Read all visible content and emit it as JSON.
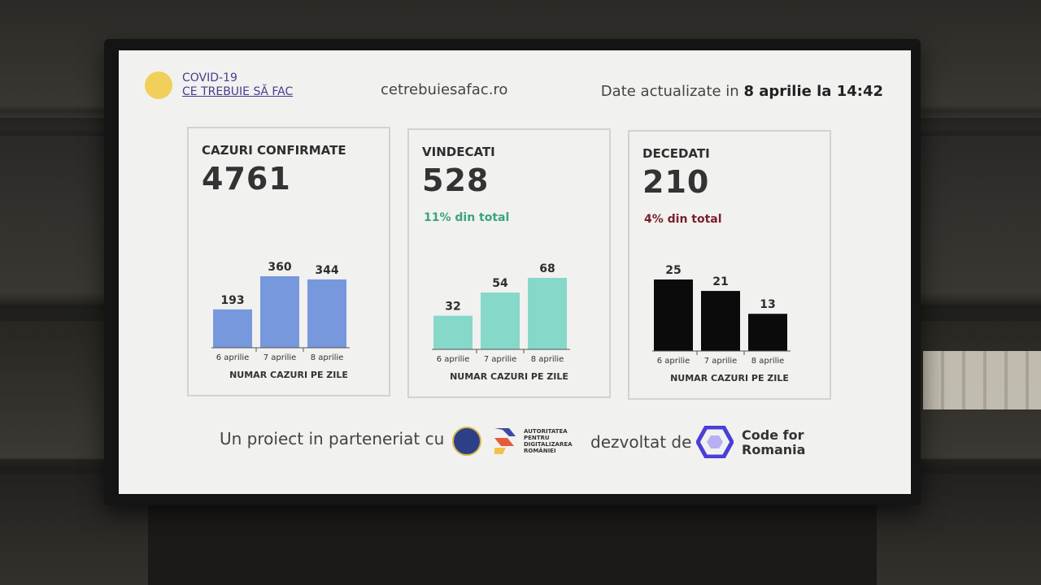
{
  "header": {
    "brand_line1": "COVID-19",
    "brand_line2": "CE TREBUIE SĂ FAC",
    "site": "cetrebuiesafac.ro",
    "updated_prefix": "Date actualizate in ",
    "updated_value": "8 aprilie la 14:42"
  },
  "cards": [
    {
      "title": "CAZURI CONFIRMATE",
      "total": "4761",
      "percent": "",
      "footer": "NUMAR CAZURI PE ZILE",
      "color": "#7898dd"
    },
    {
      "title": "VINDECATI",
      "total": "528",
      "percent": "11% din total",
      "percent_color": "#3aa57a",
      "footer": "NUMAR CAZURI PE ZILE",
      "color": "#86d8c8"
    },
    {
      "title": "DECEDATI",
      "total": "210",
      "percent": "4% din total",
      "percent_color": "#7a1f2a",
      "footer": "NUMAR CAZURI PE ZILE",
      "color": "#0b0b0b"
    }
  ],
  "chart_data": [
    {
      "type": "bar",
      "categories": [
        "6 aprilie",
        "7 aprilie",
        "8 aprilie"
      ],
      "values": [
        193,
        360,
        344
      ],
      "xlabel": "NUMAR CAZURI PE ZILE",
      "ylim": [
        0,
        360
      ]
    },
    {
      "type": "bar",
      "categories": [
        "6 aprilie",
        "7 aprilie",
        "8 aprilie"
      ],
      "values": [
        32,
        54,
        68
      ],
      "xlabel": "NUMAR CAZURI PE ZILE",
      "ylim": [
        0,
        68
      ]
    },
    {
      "type": "bar",
      "categories": [
        "6 aprilie",
        "7 aprilie",
        "8 aprilie"
      ],
      "values": [
        25,
        21,
        13
      ],
      "xlabel": "NUMAR CAZURI PE ZILE",
      "ylim": [
        0,
        25
      ]
    }
  ],
  "footer": {
    "partner_text": "Un proiect in parteneriat cu",
    "adr_text": "AUTORITATEA PENTRU DIGITALIZAREA ROMÂNIEI",
    "dev_text": "dezvoltat de",
    "cfr_line1": "Code for",
    "cfr_line2": "Romania",
    "gov_icon": "government-seal-icon",
    "adr_icon": "adr-logo-icon",
    "cfr_icon": "code-for-romania-logo-icon"
  }
}
